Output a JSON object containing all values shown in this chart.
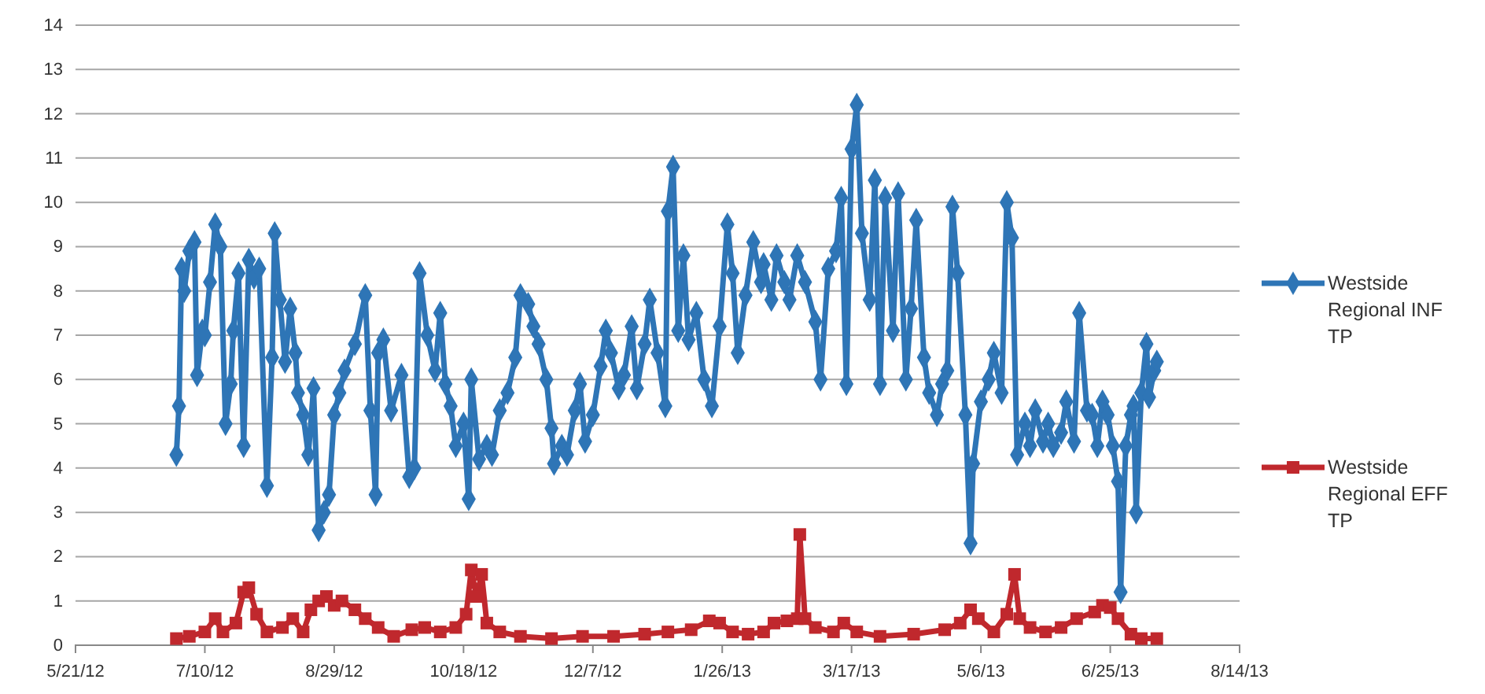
{
  "chart_data": {
    "type": "line",
    "legend": "right",
    "grid": "y",
    "xlim": [
      "2012-05-21",
      "2013-08-14"
    ],
    "xticks": [
      {
        "value": "2012-05-21",
        "label": "5/21/12"
      },
      {
        "value": "2012-07-10",
        "label": "7/10/12"
      },
      {
        "value": "2012-08-29",
        "label": "8/29/12"
      },
      {
        "value": "2012-10-18",
        "label": "10/18/12"
      },
      {
        "value": "2012-12-07",
        "label": "12/7/12"
      },
      {
        "value": "2013-01-26",
        "label": "1/26/13"
      },
      {
        "value": "2013-03-17",
        "label": "3/17/13"
      },
      {
        "value": "2013-05-06",
        "label": "5/6/13"
      },
      {
        "value": "2013-06-25",
        "label": "6/25/13"
      },
      {
        "value": "2013-08-14",
        "label": "8/14/13"
      }
    ],
    "ylim": [
      0,
      14
    ],
    "yticks": [
      0,
      1,
      2,
      3,
      4,
      5,
      6,
      7,
      8,
      9,
      10,
      11,
      12,
      13,
      14
    ],
    "series": [
      {
        "name": "Westside Regional INF TP",
        "color": "#2e75b6",
        "marker": "diamond",
        "x": [
          "2012-06-29",
          "2012-06-30",
          "2012-07-01",
          "2012-07-02",
          "2012-07-04",
          "2012-07-06",
          "2012-07-07",
          "2012-07-09",
          "2012-07-10",
          "2012-07-12",
          "2012-07-14",
          "2012-07-16",
          "2012-07-18",
          "2012-07-20",
          "2012-07-21",
          "2012-07-23",
          "2012-07-25",
          "2012-07-27",
          "2012-07-29",
          "2012-07-31",
          "2012-08-03",
          "2012-08-05",
          "2012-08-06",
          "2012-08-08",
          "2012-08-10",
          "2012-08-12",
          "2012-08-14",
          "2012-08-15",
          "2012-08-17",
          "2012-08-19",
          "2012-08-21",
          "2012-08-23",
          "2012-08-25",
          "2012-08-27",
          "2012-08-29",
          "2012-08-31",
          "2012-09-02",
          "2012-09-06",
          "2012-09-10",
          "2012-09-12",
          "2012-09-14",
          "2012-09-15",
          "2012-09-17",
          "2012-09-20",
          "2012-09-24",
          "2012-09-27",
          "2012-09-29",
          "2012-10-01",
          "2012-10-04",
          "2012-10-07",
          "2012-10-09",
          "2012-10-11",
          "2012-10-13",
          "2012-10-15",
          "2012-10-18",
          "2012-10-20",
          "2012-10-21",
          "2012-10-24",
          "2012-10-27",
          "2012-10-29",
          "2012-11-01",
          "2012-11-04",
          "2012-11-07",
          "2012-11-09",
          "2012-11-12",
          "2012-11-14",
          "2012-11-16",
          "2012-11-19",
          "2012-11-21",
          "2012-11-22",
          "2012-11-25",
          "2012-11-27",
          "2012-11-30",
          "2012-12-02",
          "2012-12-04",
          "2012-12-07",
          "2012-12-10",
          "2012-12-12",
          "2012-12-14",
          "2012-12-17",
          "2012-12-19",
          "2012-12-22",
          "2012-12-24",
          "2012-12-27",
          "2012-12-29",
          "2013-01-01",
          "2013-01-04",
          "2013-01-05",
          "2013-01-07",
          "2013-01-09",
          "2013-01-11",
          "2013-01-13",
          "2013-01-16",
          "2013-01-19",
          "2013-01-22",
          "2013-01-25",
          "2013-01-28",
          "2013-01-30",
          "2013-02-01",
          "2013-02-04",
          "2013-02-07",
          "2013-02-10",
          "2013-02-11",
          "2013-02-14",
          "2013-02-16",
          "2013-02-19",
          "2013-02-21",
          "2013-02-24",
          "2013-02-27",
          "2013-03-03",
          "2013-03-05",
          "2013-03-08",
          "2013-03-11",
          "2013-03-13",
          "2013-03-15",
          "2013-03-17",
          "2013-03-19",
          "2013-03-21",
          "2013-03-24",
          "2013-03-26",
          "2013-03-28",
          "2013-03-30",
          "2013-04-02",
          "2013-04-04",
          "2013-04-07",
          "2013-04-09",
          "2013-04-11",
          "2013-04-14",
          "2013-04-16",
          "2013-04-19",
          "2013-04-21",
          "2013-04-23",
          "2013-04-25",
          "2013-04-27",
          "2013-04-30",
          "2013-05-02",
          "2013-05-03",
          "2013-05-06",
          "2013-05-09",
          "2013-05-11",
          "2013-05-14",
          "2013-05-16",
          "2013-05-18",
          "2013-05-20",
          "2013-05-23",
          "2013-05-25",
          "2013-05-27",
          "2013-05-30",
          "2013-06-01",
          "2013-06-03",
          "2013-06-06",
          "2013-06-08",
          "2013-06-11",
          "2013-06-13",
          "2013-06-16",
          "2013-06-18",
          "2013-06-20",
          "2013-06-22",
          "2013-06-24",
          "2013-06-26",
          "2013-06-28",
          "2013-06-29",
          "2013-07-01",
          "2013-07-03",
          "2013-07-04",
          "2013-07-05",
          "2013-07-07",
          "2013-07-09",
          "2013-07-10",
          "2013-07-12",
          "2013-07-13"
        ],
        "values": [
          4.3,
          5.4,
          8.5,
          8.0,
          8.9,
          9.1,
          6.1,
          7.1,
          7.0,
          8.2,
          9.5,
          9.0,
          5.0,
          5.9,
          7.1,
          8.4,
          4.5,
          8.7,
          8.3,
          8.5,
          3.6,
          6.5,
          9.3,
          7.8,
          6.4,
          7.6,
          6.6,
          5.7,
          5.2,
          4.3,
          5.8,
          2.6,
          3.0,
          3.4,
          5.2,
          5.7,
          6.2,
          6.8,
          7.9,
          5.3,
          3.4,
          6.6,
          6.9,
          5.3,
          6.1,
          3.8,
          4.0,
          8.4,
          7.0,
          6.2,
          7.5,
          5.9,
          5.4,
          4.5,
          5.0,
          3.3,
          6.0,
          4.2,
          4.5,
          4.3,
          5.3,
          5.7,
          6.5,
          7.9,
          7.7,
          7.2,
          6.8,
          6.0,
          4.9,
          4.1,
          4.5,
          4.3,
          5.3,
          5.9,
          4.6,
          5.2,
          6.3,
          7.1,
          6.6,
          5.8,
          6.1,
          7.2,
          5.8,
          6.8,
          7.8,
          6.6,
          5.4,
          9.8,
          10.8,
          7.1,
          8.8,
          6.9,
          7.5,
          6.0,
          5.4,
          7.2,
          9.5,
          8.4,
          6.6,
          7.9,
          9.1,
          8.2,
          8.6,
          7.8,
          8.8,
          8.2,
          7.8,
          8.8,
          8.2,
          7.3,
          6.0,
          8.5,
          8.9,
          10.1,
          5.9,
          11.2,
          12.2,
          9.3,
          7.8,
          10.5,
          5.9,
          10.1,
          7.1,
          10.2,
          6.0,
          7.6,
          9.6,
          6.5,
          5.7,
          5.2,
          5.9,
          6.2,
          9.9,
          8.4,
          5.2,
          2.3,
          4.1,
          5.5,
          6.0,
          6.6,
          5.7,
          10.0,
          9.2,
          4.3,
          5.0,
          4.5,
          5.3,
          4.6,
          5.0,
          4.5,
          4.8,
          5.5,
          4.6,
          7.5,
          5.3,
          5.2,
          4.5,
          5.5,
          5.2,
          4.5,
          3.7,
          1.2,
          4.5,
          5.2,
          5.4,
          3.0,
          5.7,
          6.8,
          5.6,
          6.2,
          6.4
        ]
      },
      {
        "name": "Westside Regional EFF TP",
        "color": "#c0282d",
        "marker": "square",
        "x": [
          "2012-06-29",
          "2012-07-04",
          "2012-07-10",
          "2012-07-14",
          "2012-07-17",
          "2012-07-22",
          "2012-07-25",
          "2012-07-27",
          "2012-07-30",
          "2012-08-03",
          "2012-08-09",
          "2012-08-13",
          "2012-08-17",
          "2012-08-20",
          "2012-08-23",
          "2012-08-26",
          "2012-08-29",
          "2012-09-01",
          "2012-09-06",
          "2012-09-10",
          "2012-09-15",
          "2012-09-21",
          "2012-09-28",
          "2012-10-03",
          "2012-10-09",
          "2012-10-15",
          "2012-10-19",
          "2012-10-21",
          "2012-10-23",
          "2012-10-25",
          "2012-10-27",
          "2012-11-01",
          "2012-11-09",
          "2012-11-21",
          "2012-12-03",
          "2012-12-15",
          "2012-12-27",
          "2013-01-05",
          "2013-01-14",
          "2013-01-21",
          "2013-01-25",
          "2013-01-30",
          "2013-02-05",
          "2013-02-11",
          "2013-02-15",
          "2013-02-20",
          "2013-02-24",
          "2013-02-25",
          "2013-02-27",
          "2013-03-03",
          "2013-03-10",
          "2013-03-14",
          "2013-03-19",
          "2013-03-28",
          "2013-04-10",
          "2013-04-22",
          "2013-04-28",
          "2013-05-02",
          "2013-05-05",
          "2013-05-11",
          "2013-05-16",
          "2013-05-19",
          "2013-05-21",
          "2013-05-25",
          "2013-05-31",
          "2013-06-06",
          "2013-06-12",
          "2013-06-19",
          "2013-06-22",
          "2013-06-25",
          "2013-06-28",
          "2013-07-03",
          "2013-07-07",
          "2013-07-13"
        ],
        "values": [
          0.15,
          0.2,
          0.3,
          0.6,
          0.3,
          0.5,
          1.2,
          1.3,
          0.7,
          0.3,
          0.4,
          0.6,
          0.3,
          0.8,
          1.0,
          1.1,
          0.9,
          1.0,
          0.8,
          0.6,
          0.4,
          0.2,
          0.35,
          0.4,
          0.3,
          0.4,
          0.7,
          1.7,
          1.1,
          1.6,
          0.5,
          0.3,
          0.2,
          0.15,
          0.2,
          0.2,
          0.25,
          0.3,
          0.35,
          0.55,
          0.5,
          0.3,
          0.25,
          0.3,
          0.5,
          0.55,
          0.6,
          2.5,
          0.6,
          0.4,
          0.3,
          0.5,
          0.3,
          0.2,
          0.25,
          0.35,
          0.5,
          0.8,
          0.6,
          0.3,
          0.7,
          1.6,
          0.6,
          0.4,
          0.3,
          0.4,
          0.6,
          0.75,
          0.9,
          0.85,
          0.6,
          0.25,
          0.15,
          0.15
        ]
      }
    ]
  }
}
